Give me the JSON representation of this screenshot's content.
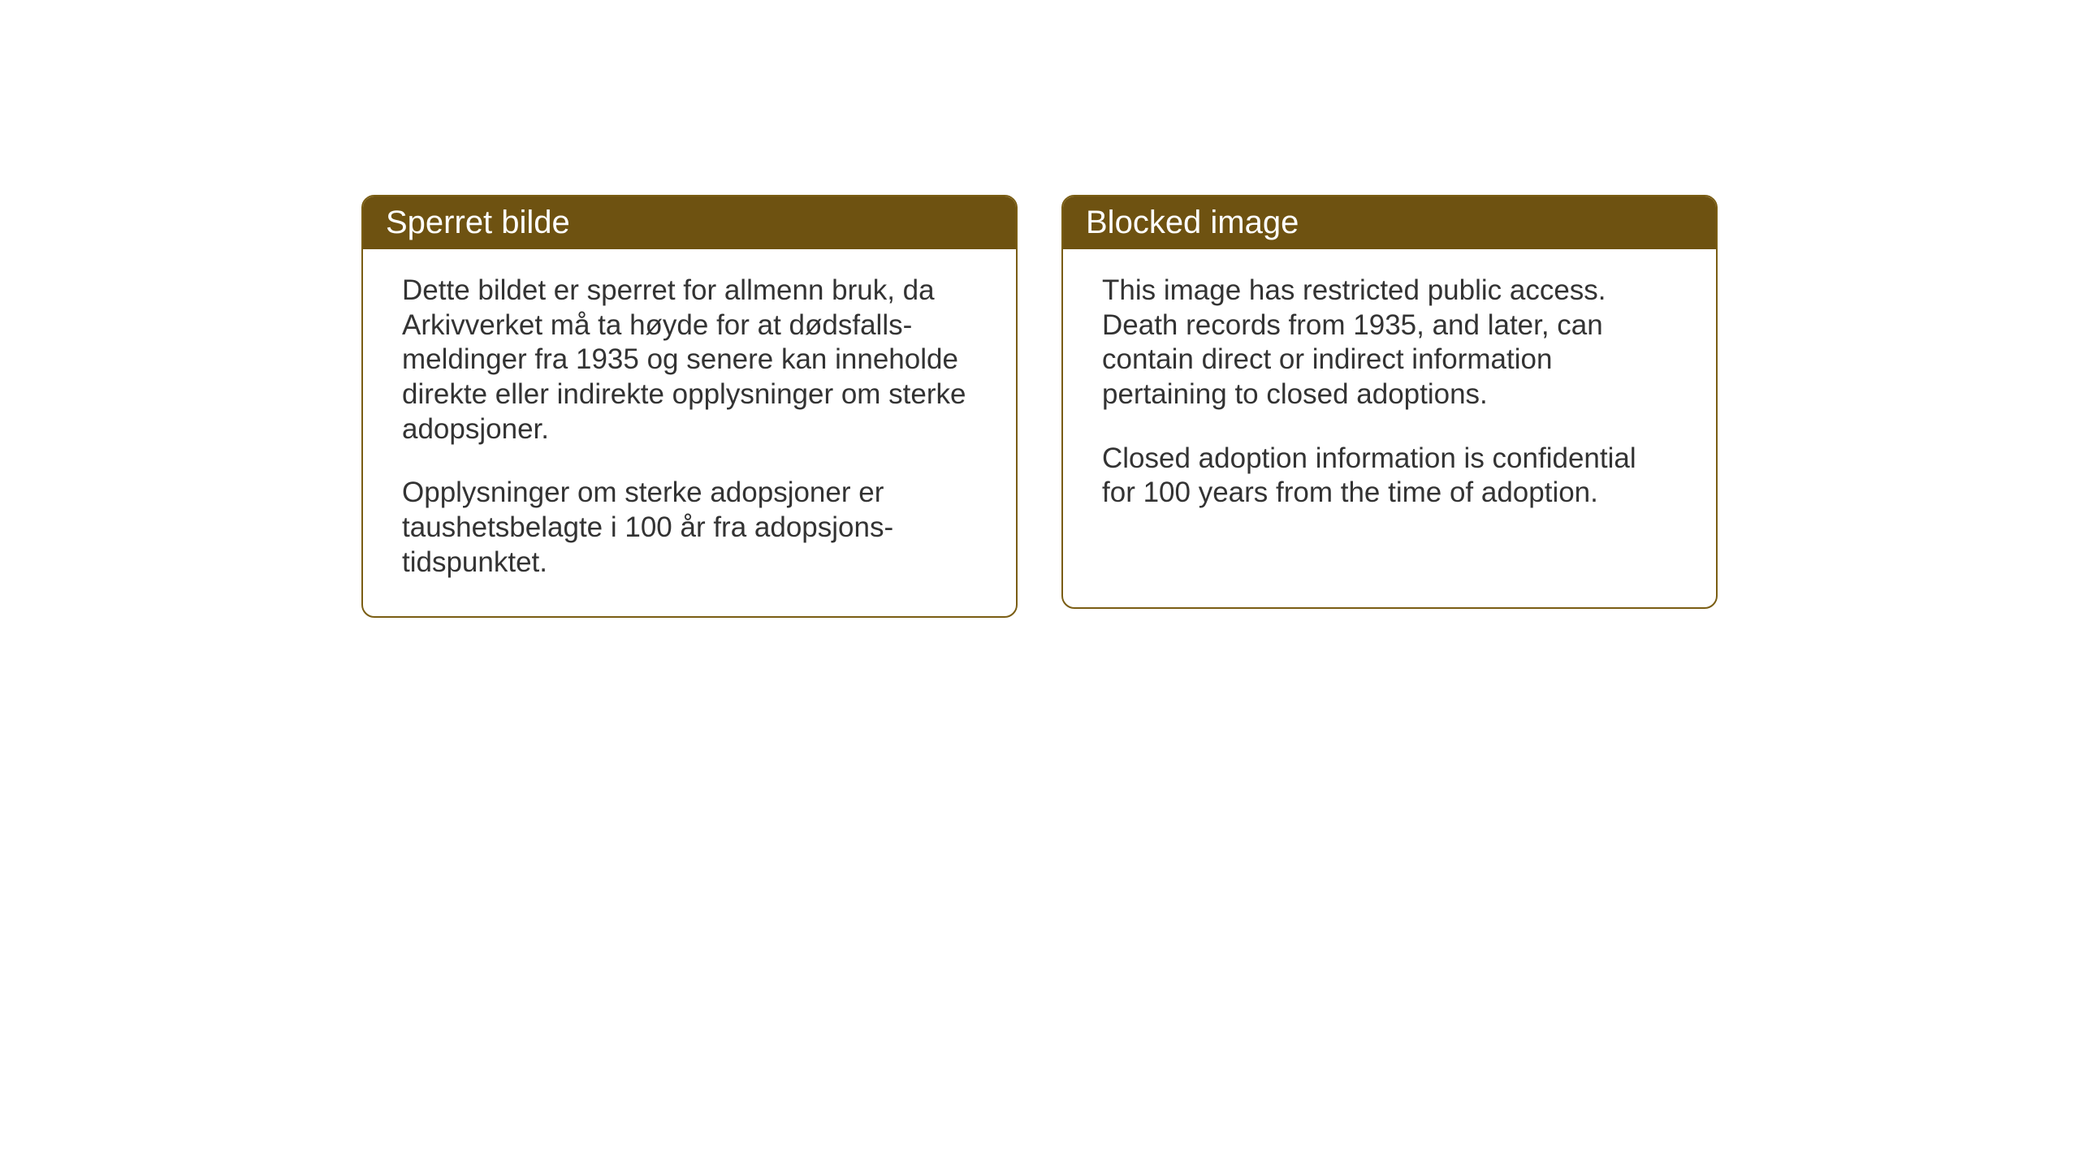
{
  "cards": {
    "norwegian": {
      "title": "Sperret bilde",
      "paragraph1": "Dette bildet er sperret for allmenn bruk, da Arkivverket må ta høyde for at dødsfalls-meldinger fra 1935 og senere kan inneholde direkte eller indirekte opplysninger om sterke adopsjoner.",
      "paragraph2": "Opplysninger om sterke adopsjoner er taushetsbelagte i 100 år fra adopsjons-tidspunktet."
    },
    "english": {
      "title": "Blocked image",
      "paragraph1": "This image has restricted public access. Death records from 1935, and later, can contain direct or indirect information pertaining to closed adoptions.",
      "paragraph2": "Closed adoption information is confidential for 100 years from the time of adoption."
    }
  },
  "styling": {
    "header_background": "#6e5211",
    "border_color": "#7a5d13",
    "header_text_color": "#ffffff",
    "body_text_color": "#333333",
    "background_color": "#ffffff",
    "border_radius": 16,
    "title_fontsize": 40,
    "body_fontsize": 35
  }
}
